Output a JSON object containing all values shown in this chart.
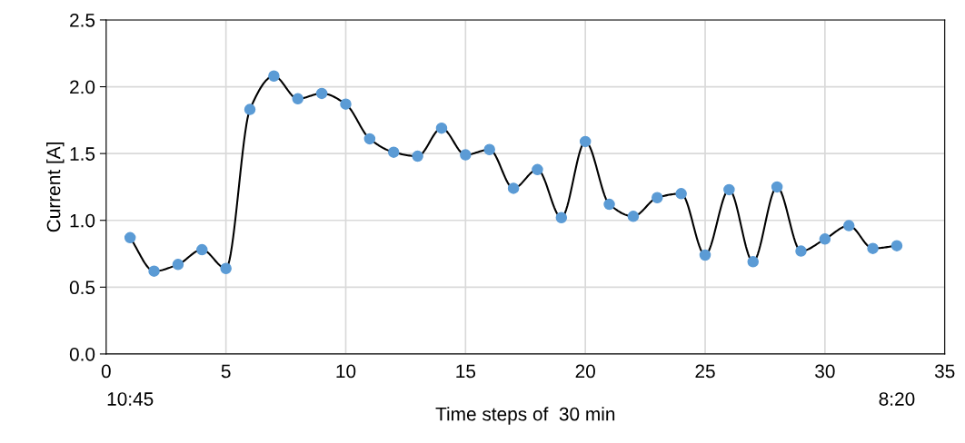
{
  "chart_data": {
    "type": "line",
    "xlabel": "Time steps of  30 min",
    "ylabel": "Current [A]",
    "x": [
      1,
      2,
      3,
      4,
      5,
      6,
      7,
      8,
      9,
      10,
      11,
      12,
      13,
      14,
      15,
      16,
      17,
      18,
      19,
      20,
      21,
      22,
      23,
      24,
      25,
      26,
      27,
      28,
      29,
      30,
      31,
      32,
      33
    ],
    "series": [
      {
        "color": "#5b9bd5",
        "values": [
          0.87,
          0.62,
          0.67,
          0.78,
          0.64,
          1.83,
          2.08,
          1.91,
          1.95,
          1.87,
          1.61,
          1.51,
          1.48,
          1.69,
          1.49,
          1.53,
          1.24,
          1.38,
          1.02,
          1.59,
          1.12,
          1.03,
          1.17,
          1.2,
          0.74,
          1.23,
          0.69,
          1.25,
          0.77,
          0.86,
          0.96,
          0.79,
          0.81
        ]
      }
    ],
    "xlim": [
      0,
      35
    ],
    "xticks": [
      0,
      5,
      10,
      15,
      20,
      25,
      30,
      35
    ],
    "ylim": [
      0,
      2.5
    ],
    "yticks": [
      {
        "value": 0,
        "label": "0.0"
      },
      {
        "value": 0.5,
        "label": "0.5"
      },
      {
        "value": 1,
        "label": "1.0"
      },
      {
        "value": 1.5,
        "label": "1.5"
      },
      {
        "value": 2,
        "label": "2.0"
      },
      {
        "value": 2.5,
        "label": "2.5"
      }
    ],
    "annotations": [
      "10:45",
      "8:20"
    ],
    "grid": true,
    "marker": "circle",
    "line_style": "solid"
  }
}
